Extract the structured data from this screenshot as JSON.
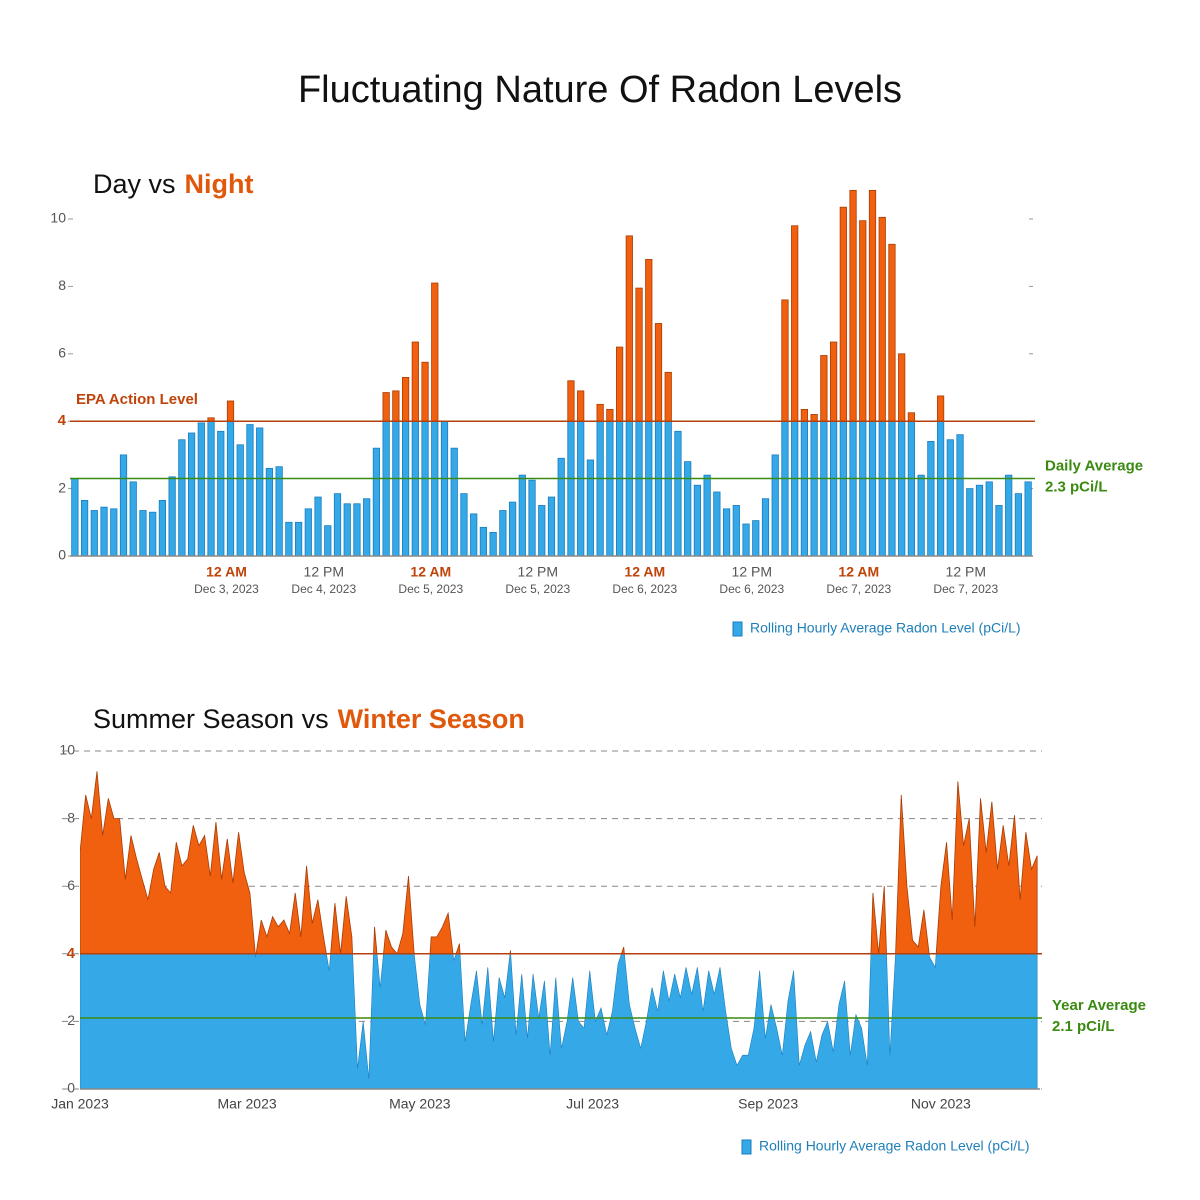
{
  "title": "Fluctuating Nature Of Radon Levels",
  "chart_data": [
    {
      "type": "bar",
      "title": "Day vs",
      "title_highlight": "Night",
      "categories": [
        null,
        null,
        null,
        null,
        null,
        null,
        null,
        null,
        null,
        null,
        null,
        null,
        null,
        null,
        null,
        null,
        {
          "time": "12 AM",
          "date": "Dec 3, 2023"
        },
        null,
        null,
        null,
        null,
        null,
        null,
        null,
        null,
        null,
        {
          "time": "12 PM",
          "date": "Dec 4, 2023"
        },
        null,
        null,
        null,
        null,
        null,
        null,
        null,
        null,
        null,
        null,
        {
          "time": "12 AM",
          "date": "Dec 5, 2023"
        },
        null,
        null,
        null,
        null,
        null,
        null,
        null,
        null,
        null,
        null,
        {
          "time": "12 PM",
          "date": "Dec 5, 2023"
        },
        null,
        null,
        null,
        null,
        null,
        null,
        null,
        null,
        null,
        null,
        {
          "time": "12 AM",
          "date": "Dec 6, 2023"
        },
        null,
        null,
        null,
        null,
        null,
        null,
        null,
        null,
        null,
        null,
        {
          "time": "12 PM",
          "date": "Dec 6, 2023"
        },
        null,
        null,
        null,
        null,
        null,
        null,
        null,
        null,
        null,
        null,
        {
          "time": "12 AM",
          "date": "Dec 7, 2023"
        },
        null,
        null,
        null,
        null,
        null,
        null,
        null,
        null,
        null,
        null,
        {
          "time": "12 PM",
          "date": "Dec 7, 2023"
        },
        null,
        null,
        null,
        null,
        null,
        null
      ],
      "values": [
        2.3,
        1.65,
        1.35,
        1.45,
        1.4,
        3.0,
        2.2,
        1.35,
        1.3,
        1.65,
        2.35,
        3.45,
        3.65,
        3.95,
        4.1,
        3.7,
        4.6,
        3.3,
        3.9,
        3.8,
        2.6,
        2.65,
        1.0,
        1.0,
        1.4,
        1.75,
        0.9,
        1.85,
        1.55,
        1.55,
        1.7,
        3.2,
        4.85,
        4.9,
        5.3,
        6.35,
        5.75,
        8.1,
        4.0,
        3.2,
        1.85,
        1.25,
        0.85,
        0.7,
        1.35,
        1.6,
        2.4,
        2.25,
        1.5,
        1.75,
        2.9,
        5.2,
        4.9,
        2.85,
        4.5,
        4.35,
        6.2,
        9.5,
        7.95,
        8.8,
        6.9,
        5.45,
        3.7,
        2.8,
        2.1,
        2.4,
        1.9,
        1.4,
        1.5,
        0.95,
        1.05,
        1.7,
        3.0,
        7.6,
        9.8,
        4.35,
        4.2,
        5.95,
        6.35,
        10.35,
        10.85,
        9.95,
        10.85,
        10.05,
        9.25,
        6.0,
        4.25,
        2.4,
        3.4,
        4.75,
        3.45,
        3.6,
        2.0,
        2.1,
        2.2,
        1.5,
        2.4,
        1.85,
        2.2
      ],
      "ylim": [
        0,
        11
      ],
      "yticks": [
        0,
        2,
        4,
        6,
        8,
        10
      ],
      "grid": false,
      "threshold": {
        "value": 4,
        "label": "EPA Action Level"
      },
      "average": {
        "value": 2.3,
        "label": "Daily Average",
        "value_label": "2.3 pCi/L"
      },
      "legend": "Rolling Hourly Average Radon Level (pCi/L)",
      "color": "#35a9e8",
      "color_above": "#f0600f"
    },
    {
      "type": "area",
      "title": "Summer Season vs",
      "title_highlight": "Winter Season",
      "x": [
        0,
        2,
        4,
        6,
        8,
        10,
        12,
        14,
        16,
        18,
        20,
        22,
        24,
        26,
        28,
        30,
        32,
        34,
        36,
        38,
        40,
        42,
        44,
        46,
        48,
        50,
        52,
        54,
        56,
        58,
        60,
        62,
        64,
        66,
        68,
        70,
        72,
        74,
        76,
        78,
        80,
        82,
        84,
        86,
        88,
        90,
        92,
        94,
        96,
        98,
        100,
        102,
        104,
        106,
        108,
        110,
        112,
        114,
        116,
        118,
        120,
        122,
        124,
        126,
        128,
        130,
        132,
        134,
        136,
        138,
        140,
        142,
        144,
        146,
        148,
        150,
        152,
        154,
        156,
        158,
        160,
        162,
        164,
        166,
        168,
        170,
        172,
        174,
        176,
        178,
        180,
        182,
        184,
        186,
        188,
        190,
        192,
        194,
        196,
        198,
        200,
        202,
        204,
        206,
        208,
        210,
        212,
        214,
        216,
        218,
        220,
        222,
        224,
        226,
        228,
        230,
        232,
        234,
        236,
        238,
        240,
        242,
        244,
        246,
        248,
        250,
        252,
        254,
        256,
        258,
        260,
        262,
        264,
        266,
        268,
        270,
        272,
        274,
        276,
        278,
        280,
        282,
        284,
        286,
        288,
        290,
        292,
        294,
        296,
        298,
        300,
        302,
        304,
        306,
        308,
        310,
        312,
        314,
        316,
        318,
        320,
        322,
        324,
        326,
        328,
        330,
        332,
        334,
        336,
        338
      ],
      "values": [
        7.0,
        8.7,
        8.0,
        9.4,
        7.5,
        8.6,
        8.0,
        8.0,
        6.2,
        7.5,
        6.8,
        6.2,
        5.6,
        6.5,
        7.0,
        6.0,
        5.8,
        7.3,
        6.6,
        6.8,
        7.8,
        7.2,
        7.5,
        6.3,
        7.9,
        6.2,
        7.4,
        6.1,
        7.6,
        6.4,
        5.8,
        3.9,
        5.0,
        4.5,
        5.1,
        4.8,
        5.0,
        4.6,
        5.8,
        4.5,
        6.6,
        4.9,
        5.6,
        4.5,
        3.5,
        5.5,
        4.0,
        5.7,
        4.5,
        0.6,
        2.0,
        0.3,
        4.8,
        3.0,
        4.7,
        4.2,
        4.0,
        4.6,
        6.3,
        4.0,
        2.5,
        1.9,
        4.5,
        4.5,
        4.8,
        5.2,
        3.8,
        4.3,
        1.4,
        2.5,
        3.5,
        1.9,
        3.6,
        1.4,
        3.3,
        2.7,
        4.1,
        1.6,
        3.4,
        1.5,
        3.4,
        2.1,
        3.2,
        1.0,
        3.3,
        1.2,
        2.0,
        3.3,
        2.0,
        1.8,
        3.5,
        2.0,
        2.4,
        1.6,
        2.3,
        3.7,
        4.2,
        2.5,
        1.8,
        1.2,
        2.0,
        3.0,
        2.3,
        3.5,
        2.6,
        3.4,
        2.7,
        3.6,
        2.8,
        3.6,
        2.3,
        3.5,
        2.8,
        3.6,
        2.3,
        1.2,
        0.7,
        1.0,
        1.0,
        1.8,
        3.5,
        1.5,
        2.5,
        1.8,
        1.0,
        2.6,
        3.5,
        0.7,
        1.3,
        1.7,
        0.8,
        1.6,
        2.0,
        1.1,
        2.5,
        3.2,
        1.0,
        2.2,
        1.8,
        0.7,
        5.8,
        4.0,
        6.0,
        1.0,
        4.0,
        8.7,
        6.0,
        4.4,
        4.2,
        5.3,
        3.9,
        3.6,
        6.0,
        7.3,
        5.0,
        9.1,
        7.2,
        8.0,
        4.8,
        8.6,
        7.0,
        8.5,
        6.5,
        7.8,
        6.6,
        8.1,
        5.6,
        7.6,
        6.5,
        6.9
      ],
      "xlim": [
        0,
        339
      ],
      "xticks": [
        {
          "value": 0,
          "label": "Jan 2023"
        },
        {
          "value": 59,
          "label": "Mar 2023"
        },
        {
          "value": 120,
          "label": "May 2023"
        },
        {
          "value": 181,
          "label": "Jul 2023"
        },
        {
          "value": 243,
          "label": "Sep 2023"
        },
        {
          "value": 304,
          "label": "Nov 2023"
        }
      ],
      "ylim": [
        0,
        10
      ],
      "yticks": [
        0,
        2,
        4,
        6,
        8,
        10
      ],
      "grid": true,
      "threshold": {
        "value": 4
      },
      "average": {
        "value": 2.1,
        "label": "Year Average",
        "value_label": "2.1 pCi/L"
      },
      "legend": "Rolling Hourly Average Radon Level (pCi/L)",
      "color": "#35a9e8",
      "color_above": "#f0600f"
    }
  ]
}
